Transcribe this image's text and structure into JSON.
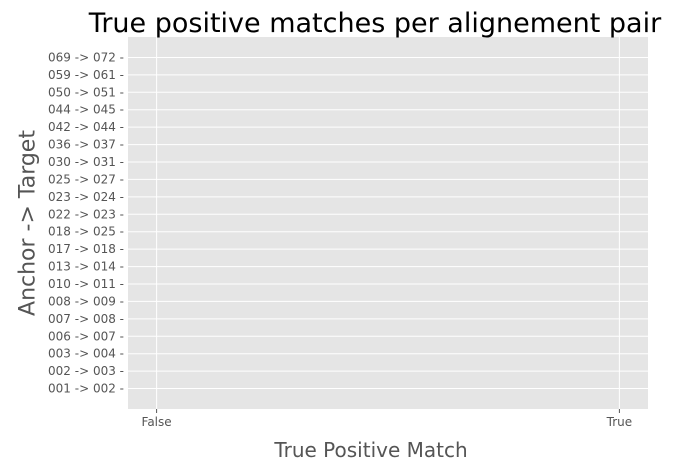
{
  "chart_data": {
    "type": "scatter",
    "title": "True positive matches per alignement pair",
    "xlabel": "True Positive Match",
    "ylabel": "Anchor -> Target",
    "x_categories": [
      "False",
      "True"
    ],
    "y_categories": [
      "001 -> 002",
      "002 -> 003",
      "003 -> 004",
      "006 -> 007",
      "007 -> 008",
      "008 -> 009",
      "010 -> 011",
      "013 -> 014",
      "017 -> 018",
      "018 -> 025",
      "022 -> 023",
      "023 -> 024",
      "025 -> 027",
      "030 -> 031",
      "036 -> 037",
      "042 -> 044",
      "044 -> 045",
      "050 -> 051",
      "059 -> 061",
      "069 -> 072"
    ],
    "grid": true,
    "style": "ggplot",
    "colors": {
      "plot_background": "#e5e5e5",
      "grid": "#ffffff",
      "tick_label": "#555555",
      "axis_label": "#555555",
      "title": "#000000"
    }
  }
}
